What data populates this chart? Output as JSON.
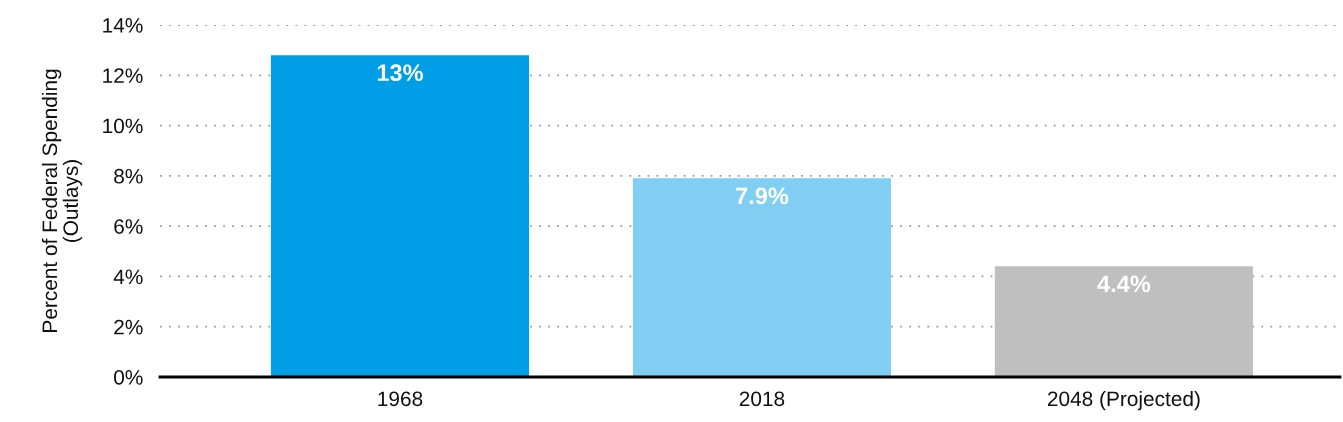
{
  "chart_data": {
    "type": "bar",
    "ylabel": "Percent of Federal Spending\n(Outlays)",
    "categories": [
      "1968",
      "2018",
      "2048 (Projected)"
    ],
    "values": [
      12.8,
      7.9,
      4.4
    ],
    "colors": [
      "#009ee6",
      "#80cff3",
      "#bfbfbf"
    ],
    "value_labels": [
      "13%",
      "7.9%",
      "4.4%"
    ],
    "ylim": [
      0,
      14
    ],
    "yticks": [
      {
        "value": 0,
        "label": "0%"
      },
      {
        "value": 2,
        "label": "2%"
      },
      {
        "value": 4,
        "label": "4%"
      },
      {
        "value": 6,
        "label": "6%"
      },
      {
        "value": 8,
        "label": "8%"
      },
      {
        "value": 10,
        "label": "10%"
      },
      {
        "value": 12,
        "label": "12%"
      },
      {
        "value": 14,
        "label": "14%"
      }
    ],
    "grid": "y"
  }
}
